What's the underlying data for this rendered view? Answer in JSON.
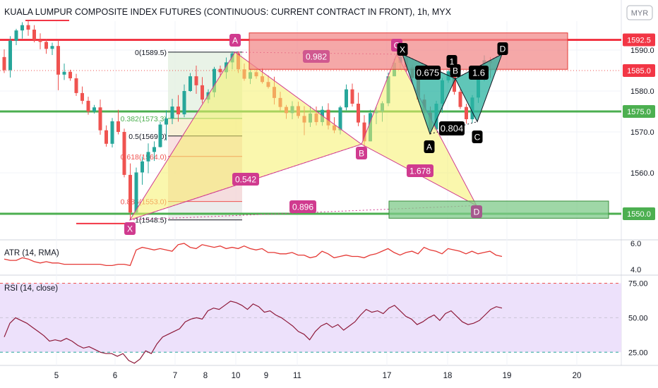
{
  "title": "KUALA LUMPUR COMPOSITE INDEX FUTURES (CONTINUOUS: CURRENT CONTRACT IN FRONT), 1h, MYX",
  "currency_badge": "MYR",
  "colors": {
    "up": "#26a69a",
    "down": "#ef5350",
    "red_line": "#f23645",
    "green_line": "#4caf50",
    "pattern_magenta": "#d03b8f",
    "yellow_fill": "#f5f06a",
    "teal_fill": "#2bb3a0",
    "atr_line": "#e53935",
    "rsi_line": "#8e1a3a",
    "rsi_band": "#ede1fb"
  },
  "main_axis": {
    "ticks": [
      "1590.0",
      "1580.0",
      "1570.0",
      "1560.0",
      "1550.0"
    ],
    "markers": [
      {
        "label": "1592.5",
        "kind": "red"
      },
      {
        "label": "1585.0",
        "kind": "red"
      },
      {
        "label": "1575.0",
        "kind": "green"
      },
      {
        "label": "1550.0",
        "kind": "green"
      }
    ]
  },
  "x_axis": {
    "ticks": [
      "5",
      "6",
      "7",
      "8",
      "9",
      "10",
      "11",
      "17",
      "18",
      "19",
      "20"
    ]
  },
  "horizontal_levels": [
    {
      "value": 1592.5,
      "color": "red"
    },
    {
      "value": 1575.0,
      "color": "green"
    },
    {
      "value": 1550.0,
      "color": "green"
    }
  ],
  "fib_labels": [
    {
      "text": "0(1589.5)",
      "value": 1589.5
    },
    {
      "text": "0.382(1573.3)",
      "value": 1573.3
    },
    {
      "text": "0.5(1569.0)",
      "value": 1569.0
    },
    {
      "text": "0.618(1564.0)",
      "value": 1564.0
    },
    {
      "text": "0.886(1553.0)",
      "value": 1553.0
    },
    {
      "text": "1(1548.5)",
      "value": 1548.5
    }
  ],
  "pattern_points": {
    "large": [
      {
        "label": "X",
        "value": 1548.5
      },
      {
        "label": "A",
        "value": 1589.5
      },
      {
        "label": "B",
        "value": 1567.0
      },
      {
        "label": "C",
        "value": 1589.0
      },
      {
        "label": "D",
        "value": 1552.0
      }
    ],
    "small": [
      {
        "label": "X",
        "value": 1589.0
      },
      {
        "label": "A",
        "value": 1569.5
      },
      {
        "label": "B",
        "value": 1583.0
      },
      {
        "label": "C",
        "value": 1572.5
      },
      {
        "label": "D",
        "value": 1589.0
      },
      {
        "label": "1",
        "value": 1585.0
      }
    ]
  },
  "ratios": {
    "large": [
      "0.982",
      "0.542",
      "1.678",
      "0.896"
    ],
    "small": [
      "0.675",
      "0.804",
      "1.6"
    ]
  },
  "atr": {
    "label": "ATR (14, RMA)",
    "ticks": [
      "6.0",
      "4.0"
    ],
    "values": [
      4.8,
      4.7,
      4.7,
      4.9,
      4.8,
      4.6,
      4.5,
      4.6,
      4.5,
      4.5,
      4.4,
      4.4,
      4.4,
      4.4,
      4.4,
      4.4,
      4.4,
      4.3,
      4.3,
      4.4,
      4.4,
      4.3,
      5.5,
      5.7,
      5.6,
      5.5,
      5.6,
      5.5,
      5.4,
      5.9,
      6.0,
      5.7,
      5.6,
      5.9,
      5.8,
      5.7,
      5.8,
      5.6,
      5.7,
      5.6,
      5.8,
      5.6,
      5.5,
      5.6,
      5.3,
      5.3,
      5.2,
      5.2,
      5.3,
      5.1,
      5.1,
      4.9,
      5.0,
      5.4,
      5.2,
      4.9,
      5.0,
      5.1,
      5.0,
      5.0,
      4.9,
      5.1,
      5.2,
      5.4,
      5.6,
      5.3,
      5.1,
      5.3,
      5.4,
      5.2,
      5.7,
      5.5,
      5.4,
      5.2,
      5.6,
      5.5,
      5.4,
      5.2,
      5.4,
      5.2,
      5.3,
      5.4,
      5.1,
      5.0
    ]
  },
  "rsi": {
    "label": "RSI (14, close)",
    "ticks": [
      "75.00",
      "50.00",
      "25.00"
    ],
    "values": [
      36,
      46,
      50,
      48,
      46,
      43,
      40,
      37,
      33,
      34,
      33,
      35,
      33,
      30,
      28,
      29,
      27,
      25,
      24,
      24,
      22,
      24,
      19,
      17,
      20,
      26,
      24,
      31,
      36,
      38,
      40,
      42,
      47,
      49,
      50,
      49,
      55,
      57,
      56,
      59,
      62,
      61,
      59,
      56,
      60,
      58,
      54,
      55,
      52,
      50,
      47,
      44,
      40,
      38,
      34,
      40,
      44,
      46,
      43,
      45,
      41,
      44,
      47,
      52,
      56,
      54,
      55,
      53,
      57,
      59,
      55,
      51,
      49,
      45,
      47,
      50,
      52,
      48,
      53,
      55,
      51,
      47,
      45,
      46,
      48,
      52,
      56,
      58,
      57
    ]
  },
  "candles": [
    [
      1588.3,
      1590.2,
      1584.4,
      1585.1
    ],
    [
      1585.1,
      1593.4,
      1583.3,
      1592.3
    ],
    [
      1592.3,
      1595.2,
      1591.2,
      1594.8
    ],
    [
      1594.8,
      1596.8,
      1592.8,
      1596.1
    ],
    [
      1596.1,
      1597.3,
      1593.5,
      1595.0
    ],
    [
      1595.0,
      1596.1,
      1591.9,
      1592.5
    ],
    [
      1592.5,
      1594.1,
      1590.2,
      1592.0
    ],
    [
      1592.0,
      1592.7,
      1589.1,
      1590.3
    ],
    [
      1590.3,
      1591.8,
      1588.8,
      1591.0
    ],
    [
      1591.0,
      1592.3,
      1580.2,
      1584.0
    ],
    [
      1584.0,
      1586.7,
      1582.7,
      1584.7
    ],
    [
      1584.7,
      1585.2,
      1582.5,
      1583.1
    ],
    [
      1583.1,
      1584.2,
      1578.8,
      1579.5
    ],
    [
      1579.5,
      1581.1,
      1576.8,
      1577.6
    ],
    [
      1577.6,
      1578.6,
      1574.2,
      1575.0
    ],
    [
      1575.0,
      1576.6,
      1574.5,
      1576.0
    ],
    [
      1576.0,
      1577.9,
      1569.3,
      1570.4
    ],
    [
      1570.4,
      1571.6,
      1566.4,
      1567.1
    ],
    [
      1567.1,
      1573.4,
      1566.2,
      1572.6
    ],
    [
      1572.6,
      1575.4,
      1569.4,
      1570.0
    ],
    [
      1570.0,
      1570.8,
      1558.9,
      1559.5
    ],
    [
      1559.5,
      1562.3,
      1548.5,
      1550.3
    ],
    [
      1550.3,
      1561.3,
      1550.2,
      1560.1
    ],
    [
      1560.1,
      1564.0,
      1557.1,
      1562.8
    ],
    [
      1562.8,
      1567.2,
      1559.9,
      1565.1
    ],
    [
      1565.1,
      1567.7,
      1562.9,
      1566.3
    ],
    [
      1566.3,
      1572.5,
      1566.2,
      1571.8
    ],
    [
      1571.8,
      1575.3,
      1567.9,
      1573.3
    ],
    [
      1573.3,
      1578.1,
      1571.9,
      1576.2
    ],
    [
      1576.2,
      1579.0,
      1572.5,
      1574.3
    ],
    [
      1574.3,
      1581.6,
      1573.6,
      1580.0
    ],
    [
      1580.0,
      1584.4,
      1579.8,
      1583.6
    ],
    [
      1583.6,
      1586.2,
      1579.3,
      1581.4
    ],
    [
      1581.4,
      1583.4,
      1577.0,
      1577.9
    ],
    [
      1577.9,
      1580.4,
      1577.0,
      1579.7
    ],
    [
      1579.7,
      1585.9,
      1578.5,
      1585.4
    ],
    [
      1585.4,
      1586.2,
      1583.4,
      1584.6
    ],
    [
      1584.6,
      1588.2,
      1583.0,
      1587.0
    ],
    [
      1587.0,
      1589.7,
      1585.3,
      1589.2
    ],
    [
      1589.2,
      1589.7,
      1584.4,
      1585.3
    ],
    [
      1585.3,
      1586.7,
      1582.5,
      1583.0
    ],
    [
      1583.0,
      1585.5,
      1581.7,
      1584.6
    ],
    [
      1584.6,
      1585.4,
      1583.0,
      1583.6
    ],
    [
      1583.6,
      1585.6,
      1581.8,
      1582.2
    ],
    [
      1582.2,
      1583.8,
      1580.6,
      1581.0
    ],
    [
      1581.0,
      1583.5,
      1576.7,
      1578.3
    ],
    [
      1578.3,
      1579.8,
      1575.2,
      1576.1
    ],
    [
      1576.1,
      1576.6,
      1573.2,
      1574.6
    ],
    [
      1574.6,
      1577.5,
      1573.1,
      1576.3
    ],
    [
      1576.3,
      1577.4,
      1573.3,
      1573.9
    ],
    [
      1573.9,
      1576.3,
      1569.2,
      1572.3
    ],
    [
      1572.3,
      1576.3,
      1571.2,
      1574.5
    ],
    [
      1574.5,
      1576.2,
      1571.6,
      1572.4
    ],
    [
      1572.4,
      1576.3,
      1571.5,
      1575.4
    ],
    [
      1575.4,
      1577.0,
      1570.6,
      1571.6
    ],
    [
      1571.6,
      1573.6,
      1569.7,
      1570.4
    ],
    [
      1570.4,
      1576.4,
      1569.4,
      1576.0
    ],
    [
      1576.0,
      1581.6,
      1575.3,
      1580.4
    ],
    [
      1580.4,
      1581.8,
      1576.2,
      1576.9
    ],
    [
      1576.9,
      1579.6,
      1571.4,
      1572.3
    ],
    [
      1572.3,
      1574.1,
      1566.3,
      1567.7
    ],
    [
      1567.7,
      1575.4,
      1567.7,
      1574.6
    ],
    [
      1574.6,
      1576.1,
      1571.9,
      1575.0
    ],
    [
      1575.0,
      1577.5,
      1572.5,
      1577.0
    ],
    [
      1577.0,
      1584.5,
      1576.3,
      1583.6
    ],
    [
      1583.6,
      1587.8,
      1583.6,
      1586.9
    ],
    [
      1586.9,
      1589.6,
      1585.2,
      1588.4
    ],
    [
      1588.4,
      1589.6,
      1584.7,
      1585.8
    ],
    [
      1585.8,
      1586.4,
      1582.4,
      1583.2
    ],
    [
      1583.2,
      1584.4,
      1577.3,
      1577.9
    ],
    [
      1577.9,
      1579.2,
      1574.1,
      1574.7
    ],
    [
      1574.7,
      1576.2,
      1569.6,
      1570.6
    ],
    [
      1570.6,
      1577.6,
      1570.3,
      1576.9
    ],
    [
      1576.9,
      1583.2,
      1574.7,
      1582.6
    ],
    [
      1582.6,
      1585.4,
      1582.0,
      1584.8
    ],
    [
      1584.8,
      1586.0,
      1579.1,
      1579.8
    ],
    [
      1579.8,
      1580.4,
      1575.6,
      1576.1
    ],
    [
      1576.1,
      1576.9,
      1572.0,
      1573.1
    ],
    [
      1573.1,
      1579.0,
      1572.2,
      1578.4
    ],
    [
      1578.4,
      1584.3,
      1577.1,
      1583.4
    ],
    [
      1583.4,
      1588.7,
      1582.4,
      1587.5
    ],
    [
      1587.5,
      1588.3,
      1583.2,
      1586.8
    ]
  ]
}
